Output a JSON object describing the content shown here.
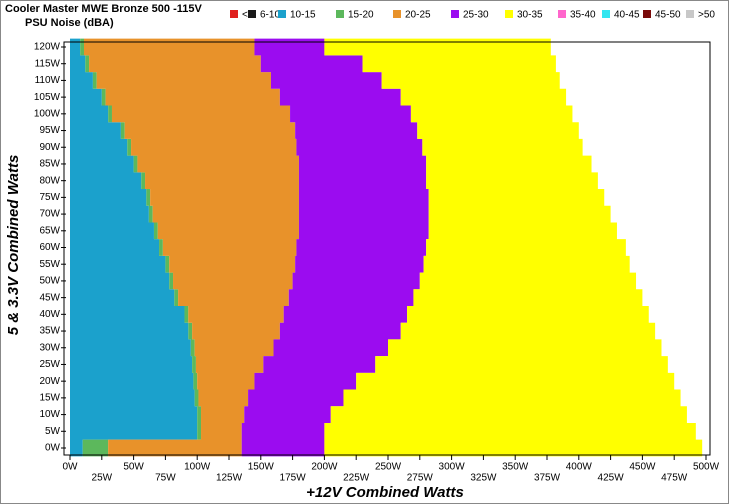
{
  "chart_data": {
    "type": "region",
    "title": "Cooler Master MWE Bronze 500 -115V",
    "subtitle": "PSU Noise (dBA)",
    "x_label": "+12V Combined Watts",
    "y_label": "5 & 3.3V Combined Watts",
    "xlim": [
      0,
      500
    ],
    "ylim": [
      0,
      120
    ],
    "xticks": [
      {
        "value": 0,
        "label": "0W"
      },
      {
        "value": 25,
        "label": "25W"
      },
      {
        "value": 50,
        "label": "50W"
      },
      {
        "value": 75,
        "label": "75W"
      },
      {
        "value": 100,
        "label": "100W"
      },
      {
        "value": 125,
        "label": "125W"
      },
      {
        "value": 150,
        "label": "150W"
      },
      {
        "value": 175,
        "label": "175W"
      },
      {
        "value": 200,
        "label": "200W"
      },
      {
        "value": 225,
        "label": "225W"
      },
      {
        "value": 250,
        "label": "250W"
      },
      {
        "value": 275,
        "label": "275W"
      },
      {
        "value": 300,
        "label": "300W"
      },
      {
        "value": 325,
        "label": "325W"
      },
      {
        "value": 350,
        "label": "350W"
      },
      {
        "value": 375,
        "label": "375W"
      },
      {
        "value": 400,
        "label": "400W"
      },
      {
        "value": 425,
        "label": "425W"
      },
      {
        "value": 450,
        "label": "450W"
      },
      {
        "value": 475,
        "label": "475W"
      },
      {
        "value": 500,
        "label": "500W"
      }
    ],
    "yticks": [
      {
        "value": 0,
        "label": "0W"
      },
      {
        "value": 5,
        "label": "5W"
      },
      {
        "value": 10,
        "label": "10W"
      },
      {
        "value": 15,
        "label": "15W"
      },
      {
        "value": 20,
        "label": "20W"
      },
      {
        "value": 25,
        "label": "25W"
      },
      {
        "value": 30,
        "label": "30W"
      },
      {
        "value": 35,
        "label": "35W"
      },
      {
        "value": 40,
        "label": "40W"
      },
      {
        "value": 45,
        "label": "45W"
      },
      {
        "value": 50,
        "label": "50W"
      },
      {
        "value": 55,
        "label": "55W"
      },
      {
        "value": 60,
        "label": "60W"
      },
      {
        "value": 65,
        "label": "65W"
      },
      {
        "value": 70,
        "label": "70W"
      },
      {
        "value": 75,
        "label": "75W"
      },
      {
        "value": 80,
        "label": "80W"
      },
      {
        "value": 85,
        "label": "85W"
      },
      {
        "value": 90,
        "label": "90W"
      },
      {
        "value": 95,
        "label": "95W"
      },
      {
        "value": 100,
        "label": "100W"
      },
      {
        "value": 105,
        "label": "105W"
      },
      {
        "value": 110,
        "label": "110W"
      },
      {
        "value": 115,
        "label": "115W"
      },
      {
        "value": 120,
        "label": "120W"
      }
    ],
    "y": [
      0,
      5,
      10,
      15,
      20,
      25,
      30,
      35,
      40,
      45,
      50,
      55,
      60,
      65,
      70,
      75,
      80,
      85,
      90,
      95,
      100,
      105,
      110,
      115,
      120
    ],
    "series": [
      {
        "name": "<6",
        "color": "#e0201e",
        "values": [
          null,
          null,
          null,
          null,
          null,
          null,
          null,
          null,
          null,
          null,
          null,
          null,
          null,
          null,
          null,
          null,
          null,
          null,
          null,
          null,
          null,
          null,
          null,
          null,
          null
        ]
      },
      {
        "name": "6-10",
        "color": "#1a1a1a",
        "values": [
          null,
          null,
          null,
          null,
          null,
          null,
          null,
          null,
          null,
          null,
          null,
          null,
          null,
          null,
          null,
          null,
          null,
          null,
          null,
          null,
          null,
          null,
          null,
          null,
          null
        ]
      },
      {
        "name": "10-15",
        "color": "#1ba1cc",
        "values": [
          10,
          100,
          100,
          98,
          97,
          96,
          95,
          93,
          90,
          82,
          78,
          75,
          70,
          66,
          62,
          60,
          56,
          50,
          45,
          40,
          30,
          25,
          18,
          12,
          8
        ]
      },
      {
        "name": "15-20",
        "color": "#5cb85c",
        "values": [
          30,
          103,
          103,
          101,
          100,
          99,
          98,
          96,
          93,
          85,
          81,
          78,
          73,
          69,
          65,
          63,
          59,
          53,
          48,
          43,
          33,
          28,
          21,
          15,
          11
        ]
      },
      {
        "name": "20-25",
        "color": "#e8922a",
        "values": [
          135,
          135,
          137,
          140,
          145,
          152,
          160,
          165,
          168,
          172,
          175,
          177,
          178,
          180,
          180,
          180,
          180,
          180,
          178,
          177,
          173,
          165,
          158,
          150,
          145
        ]
      },
      {
        "name": "25-30",
        "color": "#9b0cf0",
        "values": [
          200,
          200,
          205,
          215,
          225,
          240,
          250,
          260,
          265,
          270,
          275,
          278,
          280,
          282,
          282,
          282,
          280,
          280,
          277,
          273,
          268,
          260,
          245,
          230,
          200
        ]
      },
      {
        "name": "30-35",
        "color": "#ffff00",
        "values": [
          497,
          492,
          485,
          480,
          475,
          470,
          465,
          460,
          455,
          450,
          445,
          440,
          437,
          430,
          425,
          420,
          415,
          410,
          403,
          400,
          395,
          390,
          385,
          382,
          378
        ]
      },
      {
        "name": "35-40",
        "color": "#ff66cc",
        "values": [
          null,
          null,
          null,
          null,
          null,
          null,
          null,
          null,
          null,
          null,
          null,
          null,
          null,
          null,
          null,
          null,
          null,
          null,
          null,
          null,
          null,
          null,
          null,
          null,
          null
        ]
      },
      {
        "name": "40-45",
        "color": "#33e6f0",
        "values": [
          null,
          null,
          null,
          null,
          null,
          null,
          null,
          null,
          null,
          null,
          null,
          null,
          null,
          null,
          null,
          null,
          null,
          null,
          null,
          null,
          null,
          null,
          null,
          null,
          null
        ]
      },
      {
        "name": "45-50",
        "color": "#7a0a0a",
        "values": [
          null,
          null,
          null,
          null,
          null,
          null,
          null,
          null,
          null,
          null,
          null,
          null,
          null,
          null,
          null,
          null,
          null,
          null,
          null,
          null,
          null,
          null,
          null,
          null,
          null
        ]
      },
      {
        "name": ">50",
        "color": "#c8c8c8",
        "values": [
          null,
          null,
          null,
          null,
          null,
          null,
          null,
          null,
          null,
          null,
          null,
          null,
          null,
          null,
          null,
          null,
          null,
          null,
          null,
          null,
          null,
          null,
          null,
          null,
          null
        ]
      }
    ]
  }
}
